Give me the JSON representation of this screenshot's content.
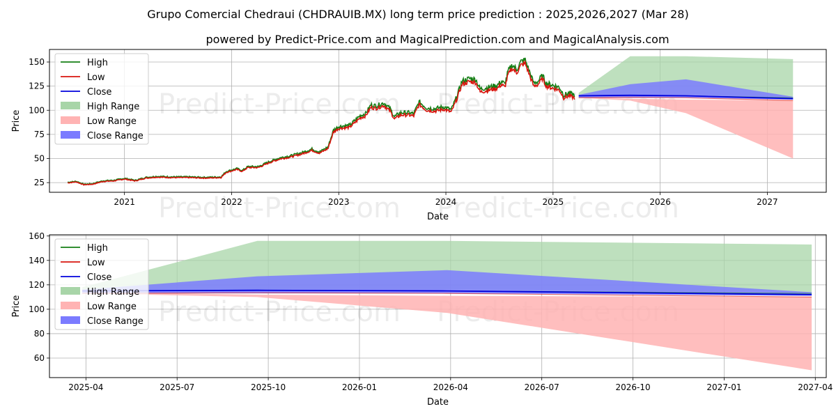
{
  "header": {
    "title": "Grupo Comercial Chedraui (CHDRAUIB.MX) long term price prediction : 2025,2026,2027 (Mar 28)",
    "subtitle": "powered by Predict-Price.com and MagicalPrediction.com and MagicalAnalysis.com"
  },
  "watermark": "Predict-Price.com",
  "legend": {
    "high": "High",
    "low": "Low",
    "close": "Close",
    "high_range": "High Range",
    "low_range": "Low Range",
    "close_range": "Close Range"
  },
  "colors": {
    "high": "#157f15",
    "low": "#d8150e",
    "close": "#0000dd",
    "high_range": "#a8d5a8",
    "low_range": "#ffb3b3",
    "close_range": "#7b7bff",
    "grid": "#b0b0b0"
  },
  "chart_data": [
    {
      "type": "line",
      "panel": "top",
      "xlabel": "Date",
      "ylabel": "Price",
      "xlim": [
        2020.3,
        2027.55
      ],
      "ylim": [
        15,
        163
      ],
      "x_ticks": [
        2021,
        2022,
        2023,
        2024,
        2025,
        2026,
        2027
      ],
      "x_tick_labels": [
        "2021",
        "2022",
        "2023",
        "2024",
        "2025",
        "2026",
        "2027"
      ],
      "y_ticks": [
        25,
        50,
        75,
        100,
        125,
        150
      ],
      "y_tick_labels": [
        "25",
        "50",
        "75",
        "100",
        "125",
        "150"
      ],
      "history_close": [
        [
          2020.47,
          25
        ],
        [
          2020.55,
          26
        ],
        [
          2020.62,
          23
        ],
        [
          2020.7,
          23.5
        ],
        [
          2020.8,
          26.5
        ],
        [
          2020.9,
          27
        ],
        [
          2021.0,
          29
        ],
        [
          2021.1,
          27
        ],
        [
          2021.2,
          30
        ],
        [
          2021.3,
          31
        ],
        [
          2021.45,
          30.5
        ],
        [
          2021.6,
          30.5
        ],
        [
          2021.75,
          30
        ],
        [
          2021.9,
          30.5
        ],
        [
          2021.95,
          36
        ],
        [
          2022.05,
          39
        ],
        [
          2022.1,
          37
        ],
        [
          2022.15,
          41
        ],
        [
          2022.25,
          41
        ],
        [
          2022.35,
          46
        ],
        [
          2022.45,
          50
        ],
        [
          2022.55,
          52
        ],
        [
          2022.65,
          55
        ],
        [
          2022.75,
          59
        ],
        [
          2022.82,
          56
        ],
        [
          2022.9,
          61
        ],
        [
          2022.95,
          78
        ],
        [
          2023.0,
          82
        ],
        [
          2023.1,
          83
        ],
        [
          2023.15,
          88
        ],
        [
          2023.2,
          93
        ],
        [
          2023.25,
          95
        ],
        [
          2023.3,
          104
        ],
        [
          2023.35,
          103
        ],
        [
          2023.42,
          106
        ],
        [
          2023.48,
          100
        ],
        [
          2023.52,
          92
        ],
        [
          2023.58,
          96
        ],
        [
          2023.65,
          96
        ],
        [
          2023.7,
          95
        ],
        [
          2023.75,
          107
        ],
        [
          2023.82,
          101
        ],
        [
          2023.9,
          100
        ],
        [
          2023.98,
          102
        ],
        [
          2024.05,
          99
        ],
        [
          2024.1,
          112
        ],
        [
          2024.15,
          128
        ],
        [
          2024.22,
          131
        ],
        [
          2024.28,
          130
        ],
        [
          2024.32,
          120
        ],
        [
          2024.4,
          122
        ],
        [
          2024.48,
          124
        ],
        [
          2024.52,
          128
        ],
        [
          2024.55,
          125
        ],
        [
          2024.58,
          138
        ],
        [
          2024.62,
          145
        ],
        [
          2024.66,
          140
        ],
        [
          2024.7,
          148
        ],
        [
          2024.74,
          150
        ],
        [
          2024.78,
          138
        ],
        [
          2024.82,
          126
        ],
        [
          2024.86,
          128
        ],
        [
          2024.9,
          134
        ],
        [
          2024.94,
          126
        ],
        [
          2025.0,
          124
        ],
        [
          2025.06,
          122
        ],
        [
          2025.1,
          114
        ],
        [
          2025.15,
          116
        ],
        [
          2025.2,
          114
        ]
      ],
      "series": [
        {
          "name": "High",
          "values": [
            [
              2025.24,
              115
            ],
            [
              2025.72,
              115.5
            ],
            [
              2026.24,
              115
            ],
            [
              2027.24,
              113
            ]
          ]
        },
        {
          "name": "Low",
          "values": [
            [
              2025.24,
              113
            ],
            [
              2025.72,
              113.5
            ],
            [
              2026.24,
              113
            ],
            [
              2027.24,
              110
            ]
          ]
        },
        {
          "name": "Close",
          "values": [
            [
              2025.24,
              115
            ],
            [
              2025.72,
              115.5
            ],
            [
              2026.24,
              115
            ],
            [
              2027.24,
              112
            ]
          ]
        }
      ],
      "ranges": [
        {
          "name": "High Range",
          "upper": [
            [
              2025.24,
              118
            ],
            [
              2025.72,
              156
            ],
            [
              2026.24,
              156
            ],
            [
              2027.24,
              153
            ]
          ],
          "lower": [
            [
              2025.24,
              115
            ],
            [
              2025.72,
              116
            ],
            [
              2026.24,
              116
            ],
            [
              2027.24,
              114
            ]
          ]
        },
        {
          "name": "Low Range",
          "upper": [
            [
              2025.24,
              114
            ],
            [
              2025.72,
              112
            ],
            [
              2026.24,
              111
            ],
            [
              2027.24,
              110
            ]
          ],
          "lower": [
            [
              2025.24,
              113
            ],
            [
              2025.72,
              110
            ],
            [
              2026.24,
              97
            ],
            [
              2027.24,
              50
            ]
          ]
        },
        {
          "name": "Close Range",
          "upper": [
            [
              2025.24,
              116
            ],
            [
              2025.72,
              127
            ],
            [
              2026.24,
              132
            ],
            [
              2027.24,
              114
            ]
          ],
          "lower": [
            [
              2025.24,
              113
            ],
            [
              2025.72,
              113
            ],
            [
              2026.24,
              113
            ],
            [
              2027.24,
              111
            ]
          ]
        }
      ]
    },
    {
      "type": "line",
      "panel": "bottom",
      "xlabel": "Date",
      "ylabel": "Price",
      "xlim": [
        2025.15,
        2027.28
      ],
      "ylim": [
        44,
        161
      ],
      "x_ticks": [
        2025.25,
        2025.5,
        2025.75,
        2026.0,
        2026.25,
        2026.5,
        2026.75,
        2027.0,
        2027.25
      ],
      "x_tick_labels": [
        "2025-04",
        "2025-07",
        "2025-10",
        "2026-01",
        "2026-04",
        "2026-07",
        "2026-10",
        "2027-01",
        "2027-04"
      ],
      "y_ticks": [
        60,
        80,
        100,
        120,
        140,
        160
      ],
      "y_tick_labels": [
        "60",
        "80",
        "100",
        "120",
        "140",
        "160"
      ],
      "series": [
        {
          "name": "High",
          "values": [
            [
              2025.24,
              115
            ],
            [
              2025.72,
              115.5
            ],
            [
              2026.24,
              115
            ],
            [
              2027.24,
              113
            ]
          ]
        },
        {
          "name": "Low",
          "values": [
            [
              2025.24,
              113
            ],
            [
              2025.72,
              113.5
            ],
            [
              2026.24,
              113
            ],
            [
              2027.24,
              110
            ]
          ]
        },
        {
          "name": "Close",
          "values": [
            [
              2025.24,
              115
            ],
            [
              2025.72,
              115.5
            ],
            [
              2026.24,
              115
            ],
            [
              2027.24,
              112
            ]
          ]
        }
      ],
      "ranges": [
        {
          "name": "High Range",
          "upper": [
            [
              2025.24,
              118
            ],
            [
              2025.72,
              156
            ],
            [
              2026.24,
              156
            ],
            [
              2027.24,
              153
            ]
          ],
          "lower": [
            [
              2025.24,
              115
            ],
            [
              2025.72,
              116
            ],
            [
              2026.24,
              116
            ],
            [
              2027.24,
              114
            ]
          ]
        },
        {
          "name": "Low Range",
          "upper": [
            [
              2025.24,
              114
            ],
            [
              2025.72,
              112
            ],
            [
              2026.24,
              111
            ],
            [
              2027.24,
              110
            ]
          ],
          "lower": [
            [
              2025.24,
              113
            ],
            [
              2025.72,
              110
            ],
            [
              2026.24,
              97
            ],
            [
              2027.24,
              50
            ]
          ]
        },
        {
          "name": "Close Range",
          "upper": [
            [
              2025.24,
              116
            ],
            [
              2025.72,
              127
            ],
            [
              2026.24,
              132
            ],
            [
              2027.24,
              114
            ]
          ],
          "lower": [
            [
              2025.24,
              113
            ],
            [
              2025.72,
              113
            ],
            [
              2026.24,
              113
            ],
            [
              2027.24,
              111
            ]
          ]
        }
      ]
    }
  ]
}
